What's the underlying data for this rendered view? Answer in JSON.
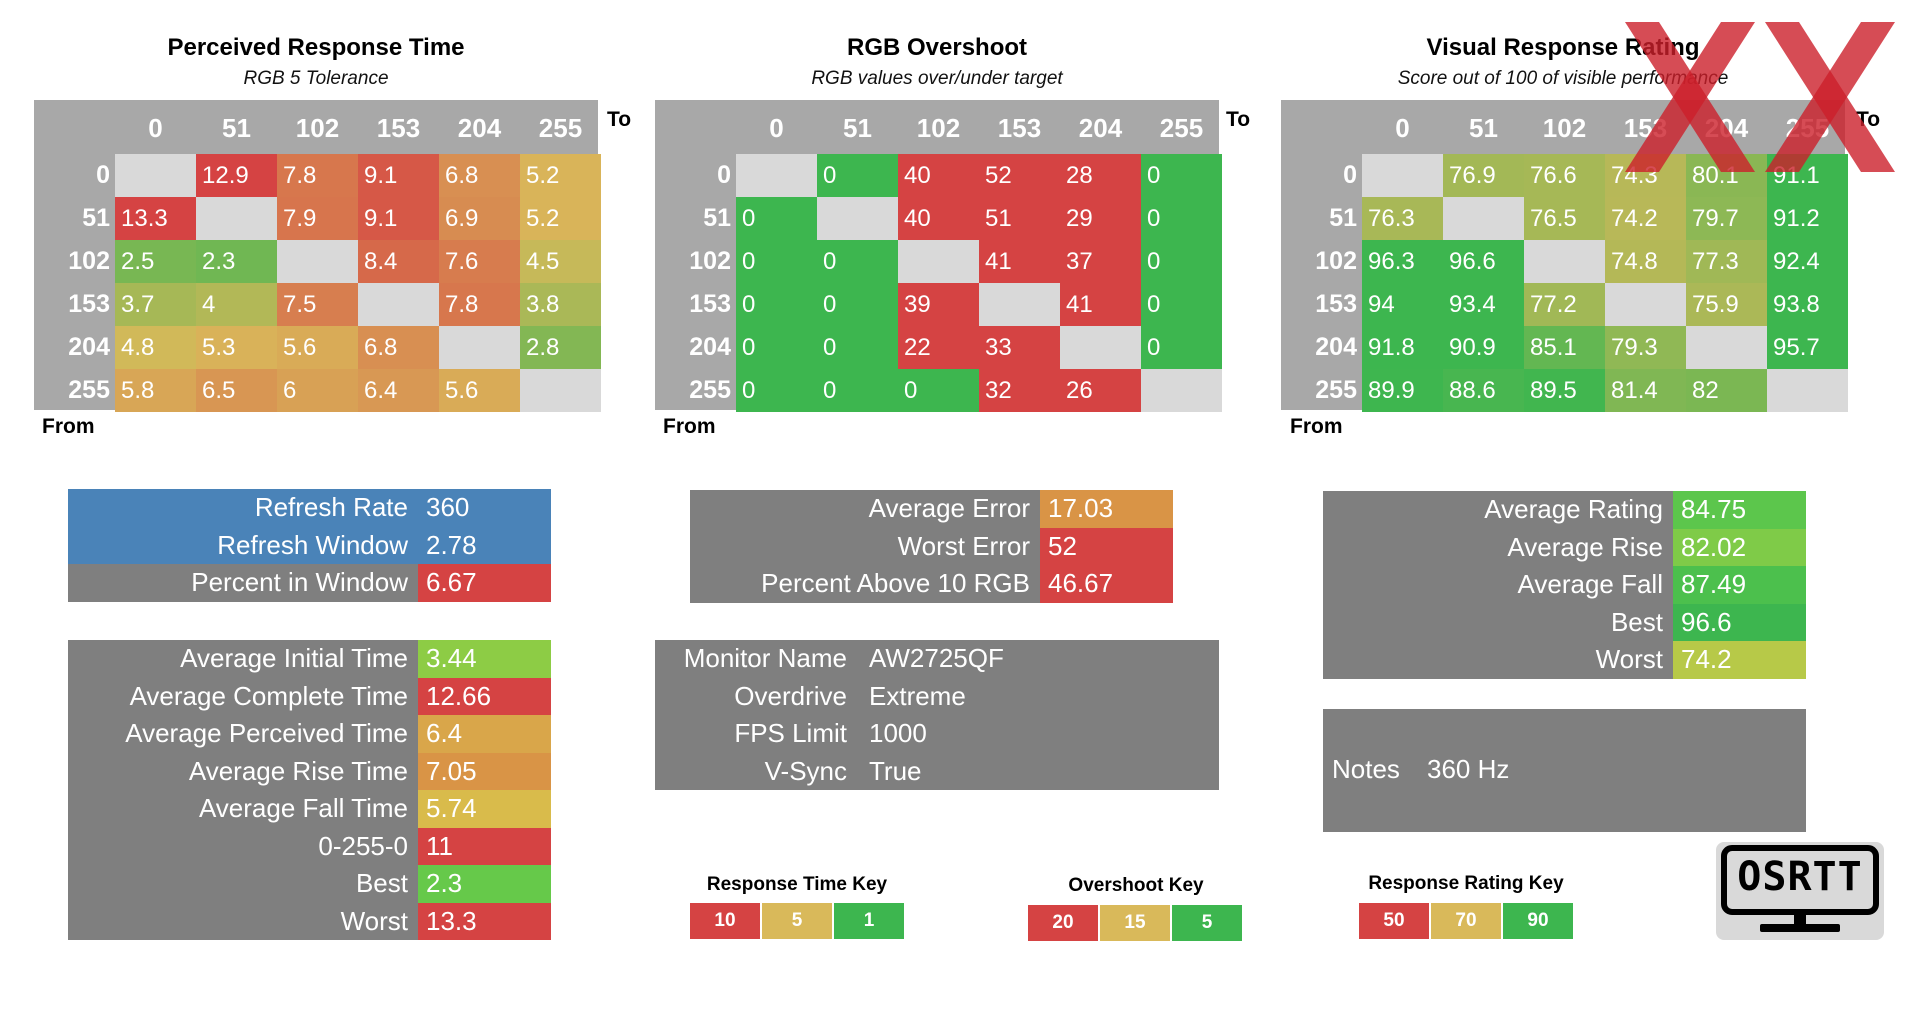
{
  "axis": {
    "to": "To",
    "from": "From"
  },
  "headers": [
    "0",
    "51",
    "102",
    "153",
    "204",
    "255"
  ],
  "chart_data": [
    {
      "type": "heatmap",
      "title": "Perceived Response Time",
      "subtitle": "RGB 5 Tolerance",
      "xlabel": "To",
      "ylabel": "From",
      "x": [
        0,
        51,
        102,
        153,
        204,
        255
      ],
      "y": [
        0,
        51,
        102,
        153,
        204,
        255
      ],
      "values": [
        [
          null,
          12.9,
          7.8,
          9.1,
          6.8,
          5.2
        ],
        [
          13.3,
          null,
          7.9,
          9.1,
          6.9,
          5.2
        ],
        [
          2.5,
          2.3,
          null,
          8.4,
          7.6,
          4.5
        ],
        [
          3.7,
          4,
          7.5,
          null,
          7.8,
          3.8
        ],
        [
          4.8,
          5.3,
          5.6,
          6.8,
          null,
          2.8
        ],
        [
          5.8,
          6.5,
          6,
          6.4,
          5.6,
          null
        ]
      ],
      "color_key": [
        {
          "label": "10",
          "color": "#d54343"
        },
        {
          "label": "5",
          "color": "#d9b95a"
        },
        {
          "label": "1",
          "color": "#3db64f"
        }
      ]
    },
    {
      "type": "heatmap",
      "title": "RGB Overshoot",
      "subtitle": "RGB values over/under target",
      "xlabel": "To",
      "ylabel": "From",
      "x": [
        0,
        51,
        102,
        153,
        204,
        255
      ],
      "y": [
        0,
        51,
        102,
        153,
        204,
        255
      ],
      "values": [
        [
          null,
          0,
          40,
          52,
          28,
          0
        ],
        [
          0,
          null,
          40,
          51,
          29,
          0
        ],
        [
          0,
          0,
          null,
          41,
          37,
          0
        ],
        [
          0,
          0,
          39,
          null,
          41,
          0
        ],
        [
          0,
          0,
          22,
          33,
          null,
          0
        ],
        [
          0,
          0,
          0,
          32,
          26,
          null
        ]
      ],
      "color_key": [
        {
          "label": "20",
          "color": "#d54343"
        },
        {
          "label": "15",
          "color": "#d9b95a"
        },
        {
          "label": "5",
          "color": "#3db64f"
        }
      ]
    },
    {
      "type": "heatmap",
      "title": "Visual Response Rating",
      "subtitle": "Score out of 100 of visible performance",
      "xlabel": "To",
      "ylabel": "From",
      "x": [
        0,
        51,
        102,
        153,
        204,
        255
      ],
      "y": [
        0,
        51,
        102,
        153,
        204,
        255
      ],
      "values": [
        [
          null,
          76.9,
          76.6,
          74.3,
          80.1,
          91.1
        ],
        [
          76.3,
          null,
          76.5,
          74.2,
          79.7,
          91.2
        ],
        [
          96.3,
          96.6,
          null,
          74.8,
          77.3,
          92.4
        ],
        [
          94,
          93.4,
          77.2,
          null,
          75.9,
          93.8
        ],
        [
          91.8,
          90.9,
          85.1,
          79.3,
          null,
          95.7
        ],
        [
          89.9,
          88.6,
          89.5,
          81.4,
          82,
          null
        ]
      ],
      "color_key": [
        {
          "label": "50",
          "color": "#d54343"
        },
        {
          "label": "70",
          "color": "#d9b95a"
        },
        {
          "label": "90",
          "color": "#3db64f"
        }
      ]
    }
  ],
  "refresh": [
    {
      "label": "Refresh Rate",
      "value": "360",
      "bg": "#4a83b8"
    },
    {
      "label": "Refresh Window",
      "value": "2.78",
      "bg": "#4a83b8"
    },
    {
      "label": "Percent in Window",
      "value": "6.67",
      "bg": "#d54343"
    }
  ],
  "times": [
    {
      "label": "Average Initial Time",
      "value": "3.44",
      "bg": "#8dcc45"
    },
    {
      "label": "Average Complete Time",
      "value": "12.66",
      "bg": "#d54343"
    },
    {
      "label": "Average Perceived Time",
      "value": "6.4",
      "bg": "#d9a64a"
    },
    {
      "label": "Average Rise Time",
      "value": "7.05",
      "bg": "#d99446"
    },
    {
      "label": "Average Fall Time",
      "value": "5.74",
      "bg": "#d9bb4b"
    },
    {
      "label": "0-255-0",
      "value": "11",
      "bg": "#d54343"
    },
    {
      "label": "Best",
      "value": "2.3",
      "bg": "#66c94a"
    },
    {
      "label": "Worst",
      "value": "13.3",
      "bg": "#d54343"
    }
  ],
  "overshoot_stats": [
    {
      "label": "Average Error",
      "value": "17.03",
      "bg": "#d99446"
    },
    {
      "label": "Worst Error",
      "value": "52",
      "bg": "#d54343"
    },
    {
      "label": "Percent Above 10 RGB",
      "value": "46.67",
      "bg": "#d54343"
    }
  ],
  "info": [
    {
      "label": "Monitor Name",
      "value": "AW2725QF"
    },
    {
      "label": "Overdrive",
      "value": "Extreme"
    },
    {
      "label": "FPS Limit",
      "value": "1000"
    },
    {
      "label": "V-Sync",
      "value": "True"
    }
  ],
  "rating_stats": [
    {
      "label": "Average Rating",
      "value": "84.75",
      "bg": "#5cc64c"
    },
    {
      "label": "Average Rise",
      "value": "82.02",
      "bg": "#7fcb48"
    },
    {
      "label": "Average Fall",
      "value": "87.49",
      "bg": "#4cc04d"
    },
    {
      "label": "Best",
      "value": "96.6",
      "bg": "#3db64f"
    },
    {
      "label": "Worst",
      "value": "74.2",
      "bg": "#b7c948"
    }
  ],
  "notes": {
    "label": "Notes",
    "value": "360 Hz"
  },
  "keys": [
    {
      "title": "Response Time Key"
    },
    {
      "title": "Overshoot Key"
    },
    {
      "title": "Response Rating Key"
    }
  ],
  "logo": {
    "text": "OSRTT"
  },
  "colors": {
    "grid_bg": "#a8a8a8",
    "panel_bg": "#7f7f7f",
    "diagonal": "#d9d9d9",
    "red": "#d54343",
    "amber": "#d9b95a",
    "green": "#3db64f",
    "blue": "#4a83b8",
    "watermark": "#cc1f2a"
  }
}
